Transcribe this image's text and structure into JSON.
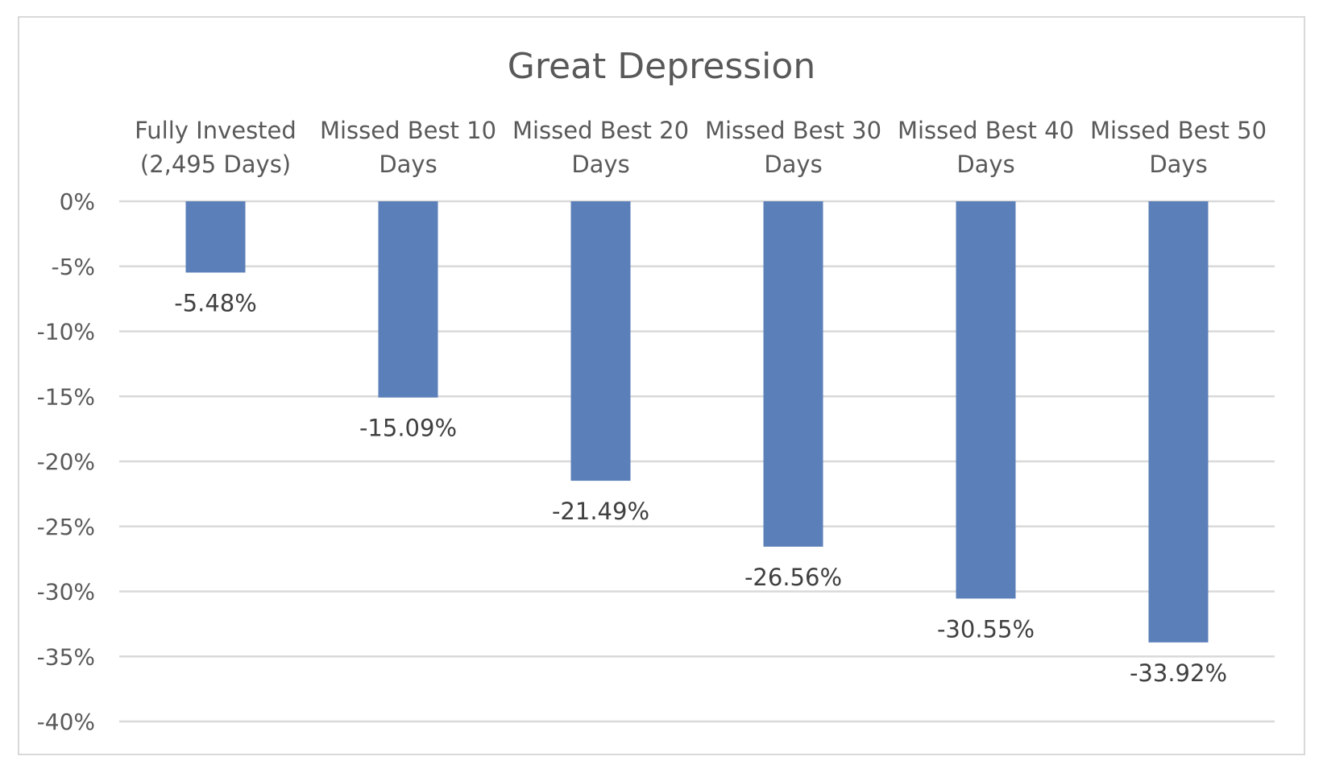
{
  "chart_data": {
    "type": "bar",
    "title": "Great Depression",
    "categories": [
      [
        "Fully Invested",
        "(2,495 Days)"
      ],
      [
        "Missed Best 10",
        "Days"
      ],
      [
        "Missed Best 20",
        "Days"
      ],
      [
        "Missed Best 30",
        "Days"
      ],
      [
        "Missed Best 40",
        "Days"
      ],
      [
        "Missed Best 50",
        "Days"
      ]
    ],
    "values": [
      -5.48,
      -15.09,
      -21.49,
      -26.56,
      -30.55,
      -33.92
    ],
    "data_labels": [
      "-5.48%",
      "-15.09%",
      "-21.49%",
      "-26.56%",
      "-30.55%",
      "-33.92%"
    ],
    "ylim": [
      -40,
      0
    ],
    "yticks": [
      0,
      -5,
      -10,
      -15,
      -20,
      -25,
      -30,
      -35,
      -40
    ],
    "ytick_labels": [
      "0%",
      "-5%",
      "-10%",
      "-15%",
      "-20%",
      "-25%",
      "-30%",
      "-35%",
      "-40%"
    ],
    "xaxis_position": "top",
    "grid": true,
    "legend": "none",
    "colors": {
      "bar": "#5b7fb8",
      "grid": "#d9d9d9",
      "text": "#595959",
      "label": "#404040",
      "border": "#d9d9d9"
    }
  }
}
